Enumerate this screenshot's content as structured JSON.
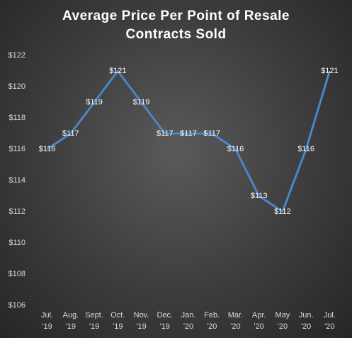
{
  "chart_data": {
    "type": "line",
    "title": "Average Price Per Point of Resale Contracts Sold",
    "categories": [
      "Jul.\n'19",
      "Aug.\n'19",
      "Sept.\n'19",
      "Oct.\n'19",
      "Nov.\n'19",
      "Dec.\n'19",
      "Jan.\n'20",
      "Feb.\n'20",
      "Mar.\n'20",
      "Apr.\n'20",
      "May\n'20",
      "Jun.\n'20",
      "Jul.\n'20"
    ],
    "values": [
      116,
      117,
      119,
      121,
      119,
      117,
      117,
      117,
      116,
      113,
      112,
      116,
      121
    ],
    "value_labels": [
      "$116",
      "$117",
      "$119",
      "$121",
      "$119",
      "$117",
      "$117",
      "$117",
      "$116",
      "$113",
      "$112",
      "$116",
      "$121"
    ],
    "color": "#4a86c8",
    "ylim": [
      106,
      122
    ],
    "yticks": [
      {
        "value": 106,
        "label": "$106"
      },
      {
        "value": 108,
        "label": "$108"
      },
      {
        "value": 110,
        "label": "$110"
      },
      {
        "value": 112,
        "label": "$112"
      },
      {
        "value": 114,
        "label": "$114"
      },
      {
        "value": 116,
        "label": "$116"
      },
      {
        "value": 118,
        "label": "$118"
      },
      {
        "value": 120,
        "label": "$120"
      },
      {
        "value": 122,
        "label": "$122"
      }
    ],
    "grid": false
  }
}
